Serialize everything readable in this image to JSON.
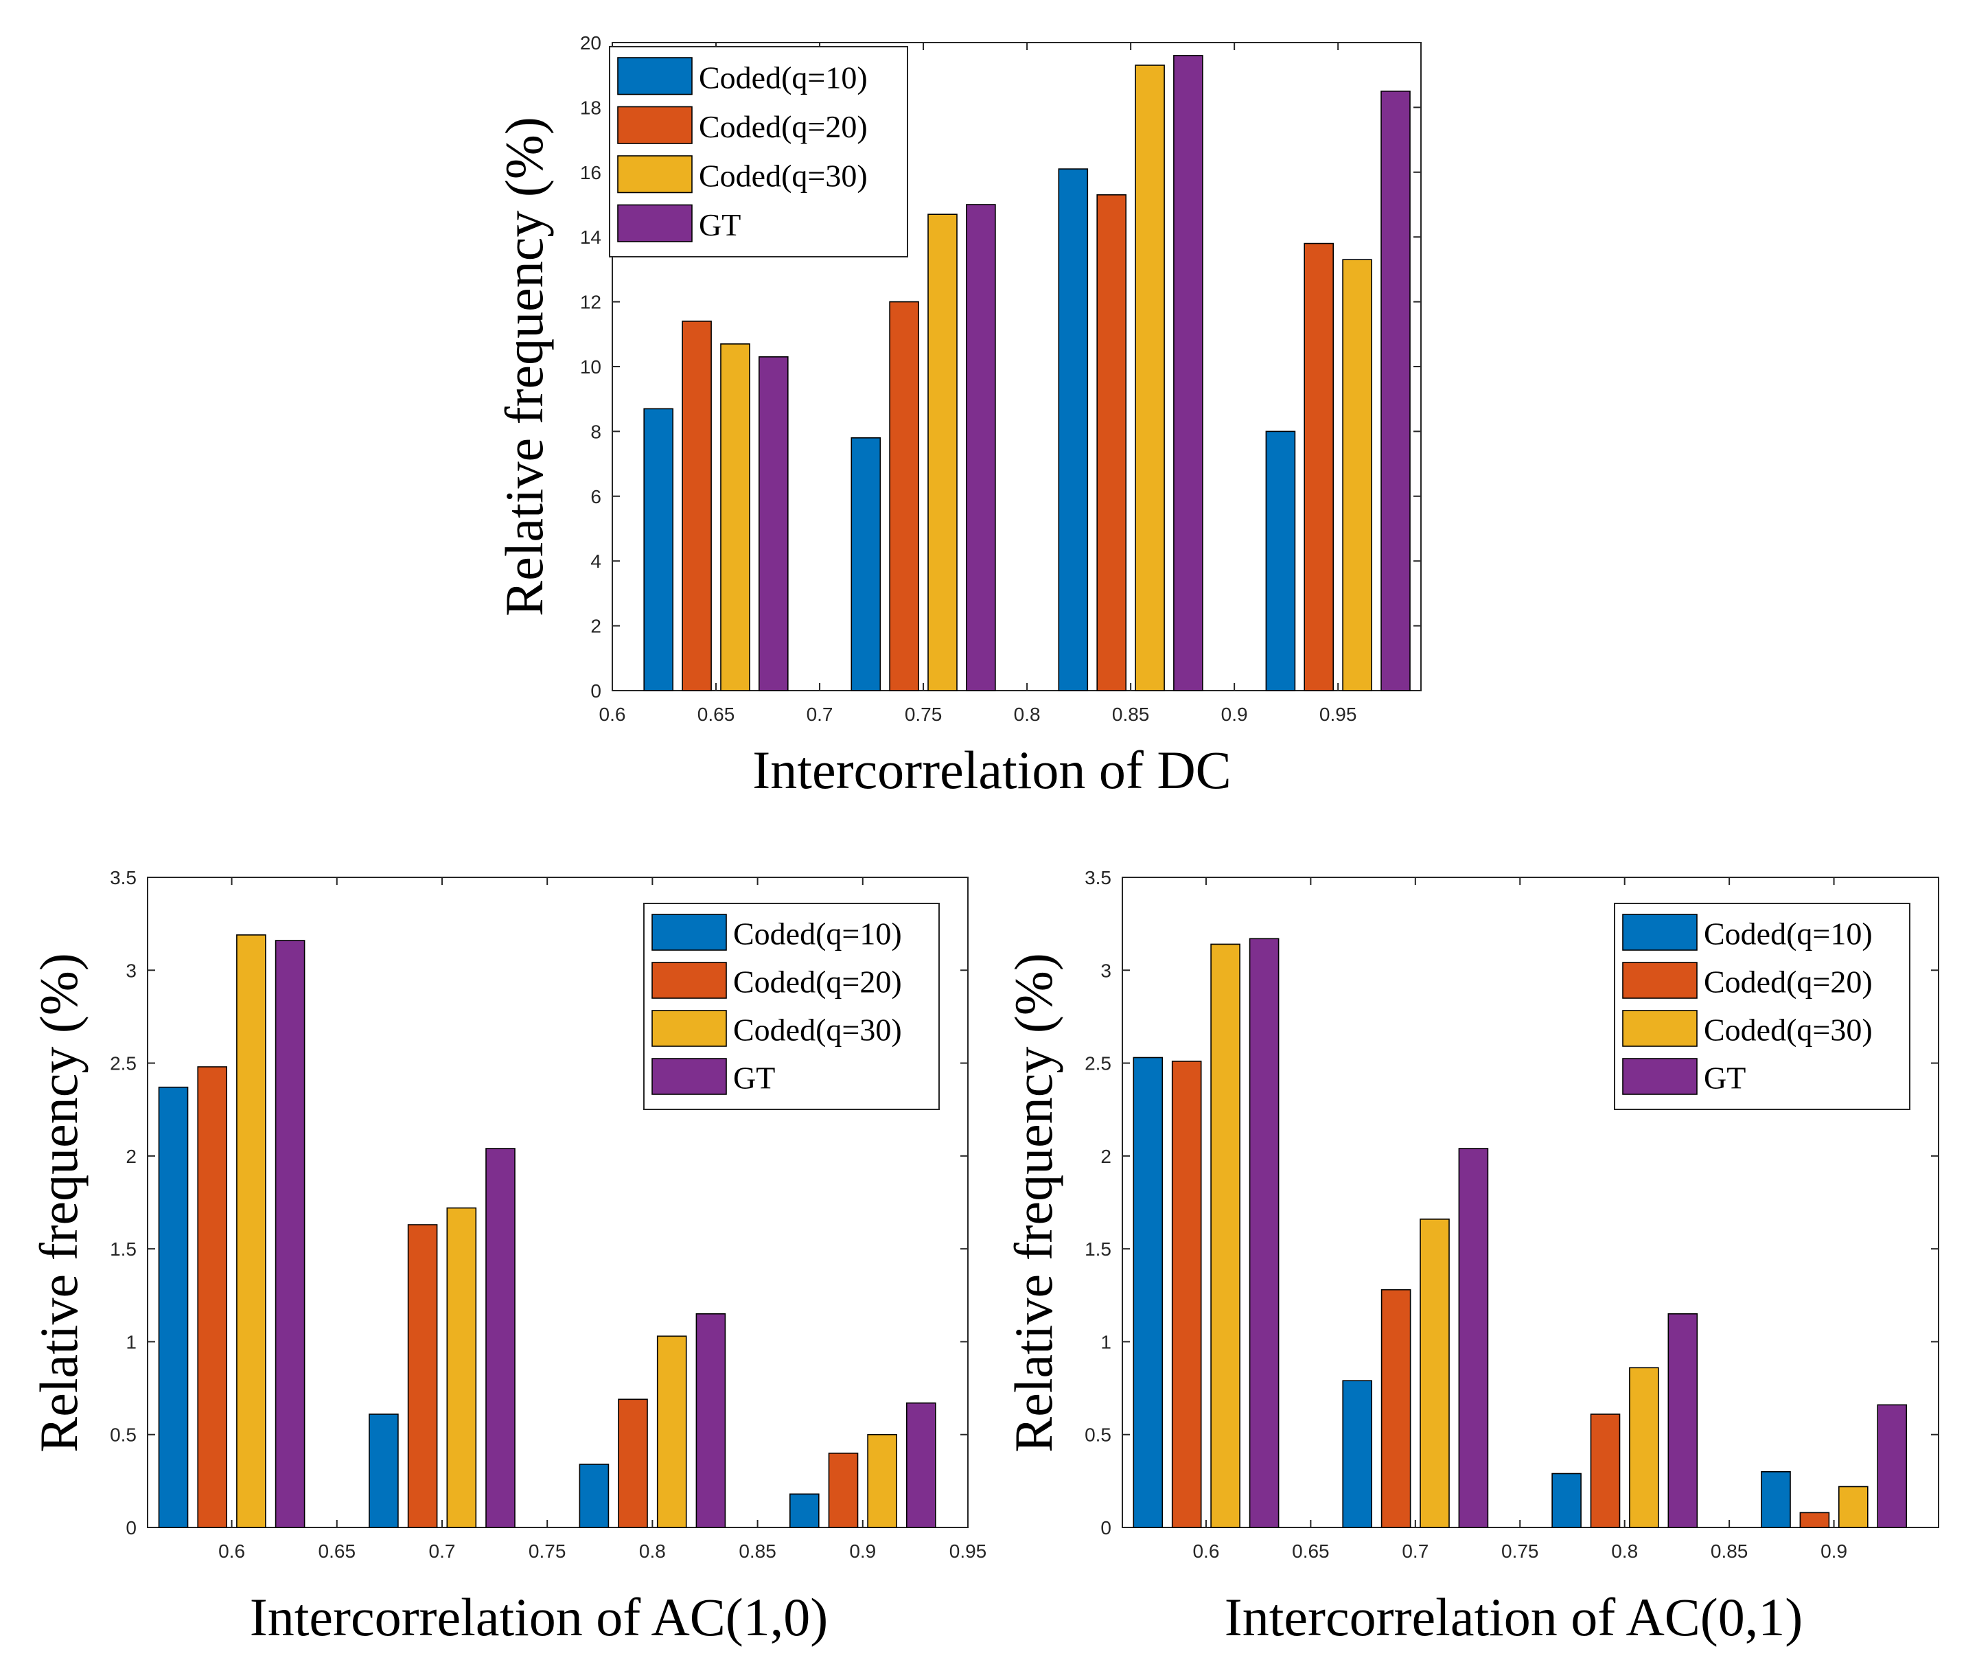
{
  "series_names": [
    "Coded(q=10)",
    "Coded(q=20)",
    "Coded(q=30)",
    "GT"
  ],
  "series_colors": [
    "#0072BD",
    "#D95319",
    "#EDB120",
    "#7E2F8E"
  ],
  "chart_data": [
    {
      "id": "dc",
      "type": "bar",
      "xlabel": "Intercorrelation of DC",
      "ylabel": "Relative frequency (%)",
      "xlim": [
        0.6,
        0.99
      ],
      "ylim": [
        0,
        20
      ],
      "xticks": [
        0.6,
        0.65,
        0.7,
        0.75,
        0.8,
        0.85,
        0.9,
        0.95
      ],
      "xtick_labels": [
        "0.6",
        "0.65",
        "0.7",
        "0.75",
        "0.8",
        "0.85",
        "0.9",
        "0.95"
      ],
      "yticks": [
        0,
        2,
        4,
        6,
        8,
        10,
        12,
        14,
        16,
        18,
        20
      ],
      "ytick_labels": [
        "0",
        "2",
        "4",
        "6",
        "8",
        "10",
        "12",
        "14",
        "16",
        "18",
        "20"
      ],
      "categories": [
        0.65,
        0.75,
        0.85,
        0.95
      ],
      "legend_position": "top-left",
      "series": [
        {
          "name": "Coded(q=10)",
          "values": [
            8.7,
            7.8,
            16.1,
            8.0
          ]
        },
        {
          "name": "Coded(q=20)",
          "values": [
            11.4,
            12.0,
            15.3,
            13.8
          ]
        },
        {
          "name": "Coded(q=30)",
          "values": [
            10.7,
            14.7,
            19.3,
            13.3
          ]
        },
        {
          "name": "GT",
          "values": [
            10.3,
            15.0,
            19.6,
            18.5
          ]
        }
      ]
    },
    {
      "id": "ac10",
      "type": "bar",
      "xlabel": "Intercorrelation of AC(1,0)",
      "ylabel": "Relative frequency (%)",
      "xlim": [
        0.56,
        0.95
      ],
      "ylim": [
        0,
        3.5
      ],
      "xticks": [
        0.6,
        0.65,
        0.7,
        0.75,
        0.8,
        0.85,
        0.9,
        0.95
      ],
      "xtick_labels": [
        "0.6",
        "0.65",
        "0.7",
        "0.75",
        "0.8",
        "0.85",
        "0.9",
        "0.95"
      ],
      "yticks": [
        0,
        0.5,
        1,
        1.5,
        2,
        2.5,
        3,
        3.5
      ],
      "ytick_labels": [
        "0",
        "0.5",
        "1",
        "1.5",
        "2",
        "2.5",
        "3",
        "3.5"
      ],
      "categories": [
        0.6,
        0.7,
        0.8,
        0.9
      ],
      "legend_position": "top-right",
      "series": [
        {
          "name": "Coded(q=10)",
          "values": [
            2.37,
            0.61,
            0.34,
            0.18
          ]
        },
        {
          "name": "Coded(q=20)",
          "values": [
            2.48,
            1.63,
            0.69,
            0.4
          ]
        },
        {
          "name": "Coded(q=30)",
          "values": [
            3.19,
            1.72,
            1.03,
            0.5
          ]
        },
        {
          "name": "GT",
          "values": [
            3.16,
            2.04,
            1.15,
            0.67
          ]
        }
      ]
    },
    {
      "id": "ac01",
      "type": "bar",
      "xlabel": "Intercorrelation of AC(0,1)",
      "ylabel": "Relative frequency (%)",
      "xlim": [
        0.56,
        0.95
      ],
      "ylim": [
        0,
        3.5
      ],
      "xticks": [
        0.6,
        0.65,
        0.7,
        0.75,
        0.8,
        0.85,
        0.9
      ],
      "xtick_labels": [
        "0.6",
        "0.65",
        "0.7",
        "0.75",
        "0.8",
        "0.85",
        "0.9"
      ],
      "yticks": [
        0,
        0.5,
        1,
        1.5,
        2,
        2.5,
        3,
        3.5
      ],
      "ytick_labels": [
        "0",
        "0.5",
        "1",
        "1.5",
        "2",
        "2.5",
        "3",
        "3.5"
      ],
      "categories": [
        0.6,
        0.7,
        0.8,
        0.9
      ],
      "legend_position": "top-right",
      "series": [
        {
          "name": "Coded(q=10)",
          "values": [
            2.53,
            0.79,
            0.29,
            0.3
          ]
        },
        {
          "name": "Coded(q=20)",
          "values": [
            2.51,
            1.28,
            0.61,
            0.08
          ]
        },
        {
          "name": "Coded(q=30)",
          "values": [
            3.14,
            1.66,
            0.86,
            0.22
          ]
        },
        {
          "name": "GT",
          "values": [
            3.17,
            2.04,
            1.15,
            0.66
          ]
        }
      ]
    }
  ]
}
